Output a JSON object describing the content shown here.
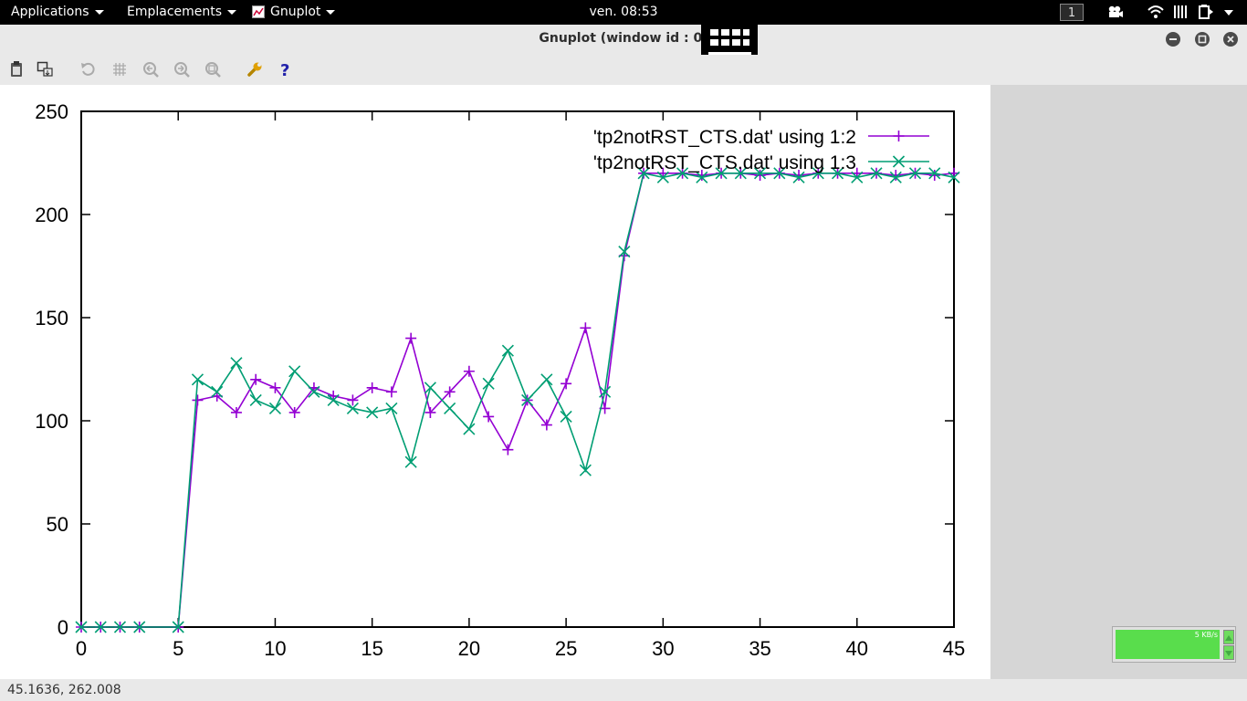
{
  "panel": {
    "menus": [
      "Applications",
      "Emplacements",
      "Gnuplot"
    ],
    "clock": "ven. 08:53",
    "workspace": "1",
    "tray_icons": [
      "camera-icon",
      "wifi-icon",
      "audio-icon",
      "battery-icon",
      "power-icon"
    ]
  },
  "window": {
    "title": "Gnuplot (window id : 0)",
    "buttons": [
      "minimize",
      "maximize",
      "close"
    ]
  },
  "toolbar": {
    "icons": [
      "clipboard-icon",
      "export-icon",
      "replot-icon",
      "grid-icon",
      "previous-zoom-icon",
      "next-zoom-icon",
      "autoscale-icon",
      "config-icon",
      "help-icon"
    ]
  },
  "colors": {
    "series1": "#9400d3",
    "series2": "#009e73",
    "net_widget": "#59dd4c"
  },
  "chart_data": {
    "type": "line",
    "xlim": [
      0,
      45
    ],
    "ylim": [
      0,
      250
    ],
    "xticks": [
      "0",
      "5",
      "10",
      "15",
      "20",
      "25",
      "30",
      "35",
      "40",
      "45"
    ],
    "yticks": [
      "0",
      "50",
      "100",
      "150",
      "200",
      "250"
    ],
    "legend_position": "top-right",
    "grid": false,
    "series": [
      {
        "name": "'tp2notRST_CTS.dat' using 1:2",
        "marker": "plus",
        "x": [
          0,
          1,
          2,
          3,
          5,
          6,
          7,
          8,
          9,
          10,
          11,
          12,
          13,
          14,
          15,
          16,
          17,
          18,
          19,
          20,
          21,
          22,
          23,
          24,
          25,
          26,
          27,
          28,
          29,
          30,
          31,
          32,
          33,
          34,
          35,
          36,
          37,
          38,
          39,
          40,
          41,
          42,
          43,
          44,
          45
        ],
        "y": [
          0,
          0,
          0,
          0,
          0,
          110,
          112,
          104,
          120,
          116,
          104,
          116,
          112,
          110,
          116,
          114,
          140,
          104,
          114,
          124,
          102,
          86,
          110,
          98,
          118,
          145,
          106,
          180,
          220,
          220,
          220,
          219,
          220,
          220,
          219,
          220,
          219,
          220,
          220,
          220,
          220,
          219,
          220,
          219,
          220
        ]
      },
      {
        "name": "'tp2notRST_CTS.dat' using 1:3",
        "marker": "cross",
        "x": [
          0,
          1,
          2,
          3,
          5,
          6,
          7,
          8,
          9,
          10,
          11,
          12,
          13,
          14,
          15,
          16,
          17,
          18,
          19,
          20,
          21,
          22,
          23,
          24,
          25,
          26,
          27,
          28,
          29,
          30,
          31,
          32,
          33,
          34,
          35,
          36,
          37,
          38,
          39,
          40,
          41,
          42,
          43,
          44,
          45
        ],
        "y": [
          0,
          0,
          0,
          0,
          0,
          120,
          114,
          128,
          110,
          106,
          124,
          114,
          110,
          106,
          104,
          106,
          80,
          116,
          106,
          96,
          118,
          134,
          110,
          120,
          102,
          76,
          114,
          182,
          220,
          218,
          220,
          218,
          220,
          220,
          220,
          220,
          218,
          220,
          220,
          218,
          220,
          218,
          220,
          220,
          218
        ]
      }
    ]
  },
  "status": {
    "coords": "45.1636, 262.008"
  },
  "net_widget": {
    "label": "5 KB/s"
  }
}
